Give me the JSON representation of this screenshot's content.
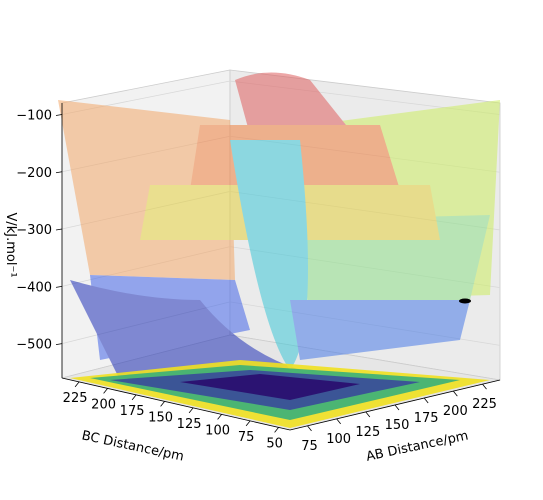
{
  "chart_data": {
    "type": "surface",
    "projection": "3d",
    "title": "",
    "xlabel": "AB Distance/pm",
    "ylabel": "BC Distance/pm",
    "zlabel": "V/kJ.mol⁻¹",
    "x_ticks": [
      75,
      100,
      125,
      150,
      175,
      200,
      225
    ],
    "y_ticks": [
      225,
      200,
      175,
      150,
      125,
      100,
      75,
      50
    ],
    "z_ticks": [
      -100,
      -200,
      -300,
      -400,
      -500
    ],
    "x_range": [
      60,
      240
    ],
    "y_range": [
      40,
      240
    ],
    "z_range": [
      -560,
      -80
    ],
    "grid": true,
    "colormap_surface": "surface gradient (blue low → red high), translucent",
    "colormap_floor_contour": "viridis",
    "description_points": {
      "saddle_height": -380,
      "reactant_valley_floor": -460,
      "product_valley_floor": -460,
      "plateau_height": -100
    }
  }
}
